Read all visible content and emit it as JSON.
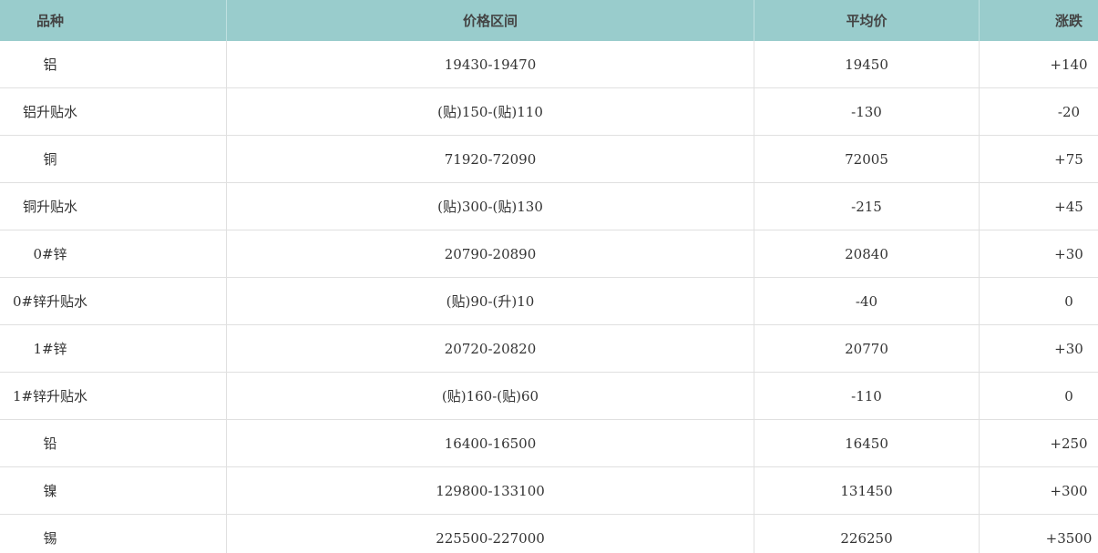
{
  "table": {
    "header": [
      "品种",
      "价格区间",
      "平均价",
      "涨跌"
    ],
    "rows": [
      [
        "铝",
        "19430-19470",
        "19450",
        "+140"
      ],
      [
        "铝升贴水",
        "(贴)150-(贴)110",
        "-130",
        "-20"
      ],
      [
        "铜",
        "71920-72090",
        "72005",
        "+75"
      ],
      [
        "铜升贴水",
        "(贴)300-(贴)130",
        "-215",
        "+45"
      ],
      [
        "0#锌",
        "20790-20890",
        "20840",
        "+30"
      ],
      [
        "0#锌升贴水",
        "(贴)90-(升)10",
        "-40",
        "0"
      ],
      [
        "1#锌",
        "20720-20820",
        "20770",
        "+30"
      ],
      [
        "1#锌升贴水",
        "(贴)160-(贴)60",
        "-110",
        "0"
      ],
      [
        "铅",
        "16400-16500",
        "16450",
        "+250"
      ],
      [
        "镍",
        "129800-133100",
        "131450",
        "+300"
      ],
      [
        "锡",
        "225500-227000",
        "226250",
        "+3500"
      ]
    ]
  }
}
